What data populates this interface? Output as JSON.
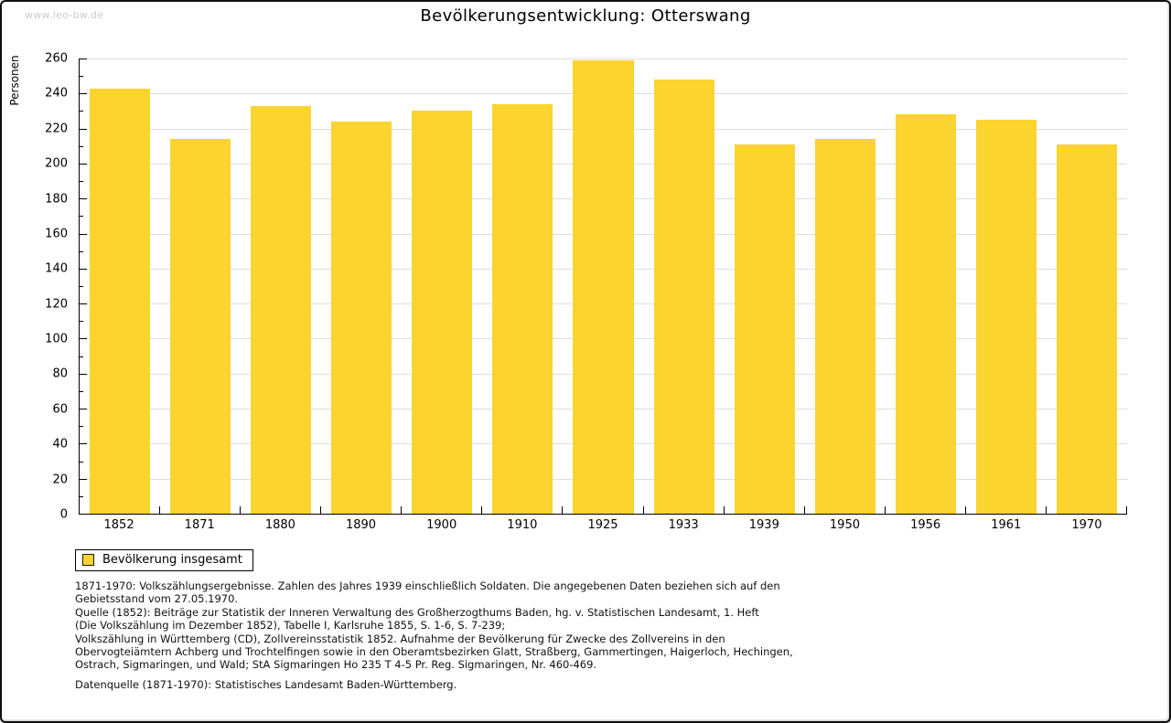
{
  "page": {
    "watermark": "www.leo-bw.de",
    "title": "Bevölkerungsentwicklung: Otterswang"
  },
  "chart_data": {
    "type": "bar",
    "title": "Bevölkerungsentwicklung: Otterswang",
    "xlabel": "",
    "ylabel": "Personen",
    "categories": [
      "1852",
      "1871",
      "1880",
      "1890",
      "1900",
      "1910",
      "1925",
      "1933",
      "1939",
      "1950",
      "1956",
      "1961",
      "1970"
    ],
    "values": [
      243,
      214,
      233,
      224,
      230,
      234,
      259,
      248,
      211,
      214,
      228,
      225,
      211
    ],
    "series_name": "Bevölkerung insgesamt",
    "ylim": [
      0,
      260
    ],
    "y_major_step": 20,
    "y_minor_step": 10,
    "grid": true,
    "legend_position": "bottom-left",
    "bar_color": "#fcd42f",
    "grid_color": "#dedede",
    "axis_color": "#000000"
  },
  "legend": {
    "label": "Bevölkerung insgesamt"
  },
  "footer": {
    "notes": [
      "1871-1970: Volkszählungsergebnisse. Zahlen des Jahres 1939 einschließlich Soldaten. Die angegebenen Daten beziehen sich auf den",
      "Gebietsstand vom 27.05.1970.",
      "Quelle (1852): Beiträge zur Statistik der Inneren Verwaltung des Großherzogthums Baden, hg. v. Statistischen Landesamt, 1. Heft",
      "(Die Volkszählung im Dezember 1852), Tabelle I, Karlsruhe 1855, S. 1-6, S. 7-239;",
      "Volkszählung in Württemberg (CD), Zollvereinsstatistik 1852. Aufnahme der Bevölkerung für Zwecke des Zollvereins in den",
      "Obervogteiämtern Achberg und Trochtelfingen sowie in den Oberamtsbezirken Glatt, Straßberg, Gammertingen, Haigerloch, Hechingen,",
      "Ostrach, Sigmaringen, und Wald; StA Sigmaringen Ho 235 T 4-5 Pr. Reg. Sigmaringen, Nr. 460-469."
    ],
    "datasource": "Datenquelle (1871-1970): Statistisches Landesamt Baden-Württemberg."
  }
}
